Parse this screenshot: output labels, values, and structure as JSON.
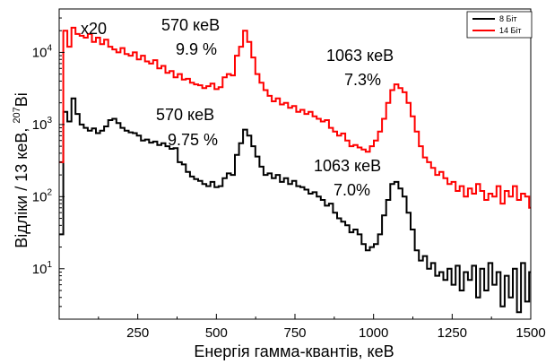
{
  "chart_data": {
    "type": "line",
    "title": "",
    "xlabel": "Енергія гамма-квантів, кеВ",
    "ylabel_main": "Відліки / 13 кеВ, ",
    "ylabel_sup": "207",
    "ylabel_tail": "Bi",
    "xlim": [
      0,
      1500
    ],
    "ylim": [
      2,
      40000
    ],
    "yscale": "log",
    "grid": false,
    "legend_position": "top-right",
    "x_ticks": [
      250,
      500,
      750,
      1000,
      1250,
      1500
    ],
    "x_tick_labels": [
      "250",
      "500",
      "750",
      "1000",
      "1250",
      "1500"
    ],
    "y_ticks": [
      10,
      100,
      1000,
      10000
    ],
    "y_tick_mantissa": "10",
    "y_tick_exponents": [
      "1",
      "2",
      "3",
      "4"
    ],
    "series": [
      {
        "name": "8 Біт",
        "color": "#000000",
        "x": [
          0,
          13,
          26,
          39,
          52,
          65,
          78,
          91,
          104,
          117,
          130,
          143,
          156,
          169,
          182,
          195,
          208,
          221,
          234,
          247,
          260,
          273,
          286,
          299,
          312,
          325,
          338,
          351,
          364,
          377,
          390,
          403,
          416,
          429,
          442,
          455,
          468,
          481,
          494,
          507,
          520,
          533,
          546,
          559,
          572,
          585,
          598,
          611,
          624,
          637,
          650,
          663,
          676,
          689,
          702,
          715,
          728,
          741,
          754,
          767,
          780,
          793,
          806,
          819,
          832,
          845,
          858,
          871,
          884,
          897,
          910,
          923,
          936,
          949,
          962,
          975,
          988,
          1001,
          1014,
          1027,
          1040,
          1053,
          1066,
          1079,
          1092,
          1105,
          1118,
          1131,
          1144,
          1157,
          1170,
          1183,
          1196,
          1209,
          1222,
          1235,
          1248,
          1261,
          1274,
          1287,
          1300,
          1313,
          1326,
          1339,
          1352,
          1365,
          1378,
          1391,
          1404,
          1417,
          1430,
          1443,
          1456,
          1469,
          1482,
          1495
        ],
        "y": [
          30,
          1500,
          1100,
          2300,
          1400,
          1000,
          900,
          820,
          880,
          760,
          820,
          940,
          1150,
          1200,
          1050,
          900,
          820,
          780,
          760,
          700,
          600,
          620,
          560,
          580,
          520,
          550,
          500,
          460,
          470,
          300,
          280,
          220,
          190,
          175,
          165,
          150,
          140,
          160,
          135,
          140,
          180,
          210,
          200,
          380,
          550,
          850,
          700,
          500,
          360,
          260,
          200,
          210,
          180,
          200,
          160,
          180,
          150,
          165,
          140,
          135,
          125,
          110,
          115,
          100,
          90,
          75,
          80,
          60,
          50,
          45,
          40,
          32,
          35,
          30,
          22,
          18,
          20,
          22,
          30,
          55,
          90,
          150,
          160,
          130,
          100,
          60,
          35,
          18,
          13,
          15,
          10,
          12,
          8,
          9,
          7,
          10,
          6,
          11,
          5,
          9,
          7,
          11,
          4,
          10,
          5,
          12,
          6,
          9,
          3,
          8,
          4,
          10,
          2.5,
          12,
          3.5,
          9
        ],
        "peak_label": {
          "energy": "570 кеВ",
          "resolution": "9.75 %"
        },
        "peak2_label": {
          "energy": "1063 кеВ",
          "resolution": "7.0%"
        }
      },
      {
        "name": "14 Біт",
        "color": "#ff0000",
        "x": [
          0,
          13,
          26,
          39,
          52,
          65,
          78,
          91,
          104,
          117,
          130,
          143,
          156,
          169,
          182,
          195,
          208,
          221,
          234,
          247,
          260,
          273,
          286,
          299,
          312,
          325,
          338,
          351,
          364,
          377,
          390,
          403,
          416,
          429,
          442,
          455,
          468,
          481,
          494,
          507,
          520,
          533,
          546,
          559,
          572,
          585,
          598,
          611,
          624,
          637,
          650,
          663,
          676,
          689,
          702,
          715,
          728,
          741,
          754,
          767,
          780,
          793,
          806,
          819,
          832,
          845,
          858,
          871,
          884,
          897,
          910,
          923,
          936,
          949,
          962,
          975,
          988,
          1001,
          1014,
          1027,
          1040,
          1053,
          1066,
          1079,
          1092,
          1105,
          1118,
          1131,
          1144,
          1157,
          1170,
          1183,
          1196,
          1209,
          1222,
          1235,
          1248,
          1261,
          1274,
          1287,
          1300,
          1313,
          1326,
          1339,
          1352,
          1365,
          1378,
          1391,
          1404,
          1417,
          1430,
          1443,
          1456,
          1469,
          1482,
          1495
        ],
        "y": [
          300,
          20000,
          12000,
          22000,
          18000,
          17000,
          16000,
          18000,
          14000,
          16000,
          13000,
          15000,
          12000,
          11000,
          10000,
          11500,
          9500,
          9000,
          10000,
          8000,
          9000,
          7500,
          7000,
          7800,
          6000,
          6500,
          5200,
          5500,
          4500,
          5000,
          4200,
          4300,
          3800,
          3600,
          3500,
          3200,
          3400,
          3700,
          3100,
          3300,
          4500,
          5000,
          4800,
          9000,
          12000,
          20000,
          14000,
          8500,
          5000,
          3800,
          3000,
          2500,
          2100,
          2300,
          1900,
          2000,
          1700,
          1800,
          1500,
          1600,
          1400,
          1500,
          1300,
          1200,
          1100,
          1150,
          900,
          800,
          700,
          750,
          600,
          500,
          520,
          480,
          450,
          420,
          500,
          600,
          800,
          1200,
          2000,
          3000,
          3600,
          3200,
          2800,
          2000,
          1300,
          800,
          500,
          350,
          300,
          250,
          200,
          220,
          180,
          150,
          160,
          120,
          140,
          100,
          130,
          110,
          150,
          120,
          90,
          110,
          100,
          140,
          80,
          120,
          100,
          140,
          90,
          110,
          100,
          70
        ],
        "scale_note": "x20",
        "peak_label": {
          "energy": "570 кеВ",
          "resolution": "9.9 %"
        },
        "peak2_label": {
          "energy": "1063 кеВ",
          "resolution": "7.3%"
        }
      }
    ]
  }
}
